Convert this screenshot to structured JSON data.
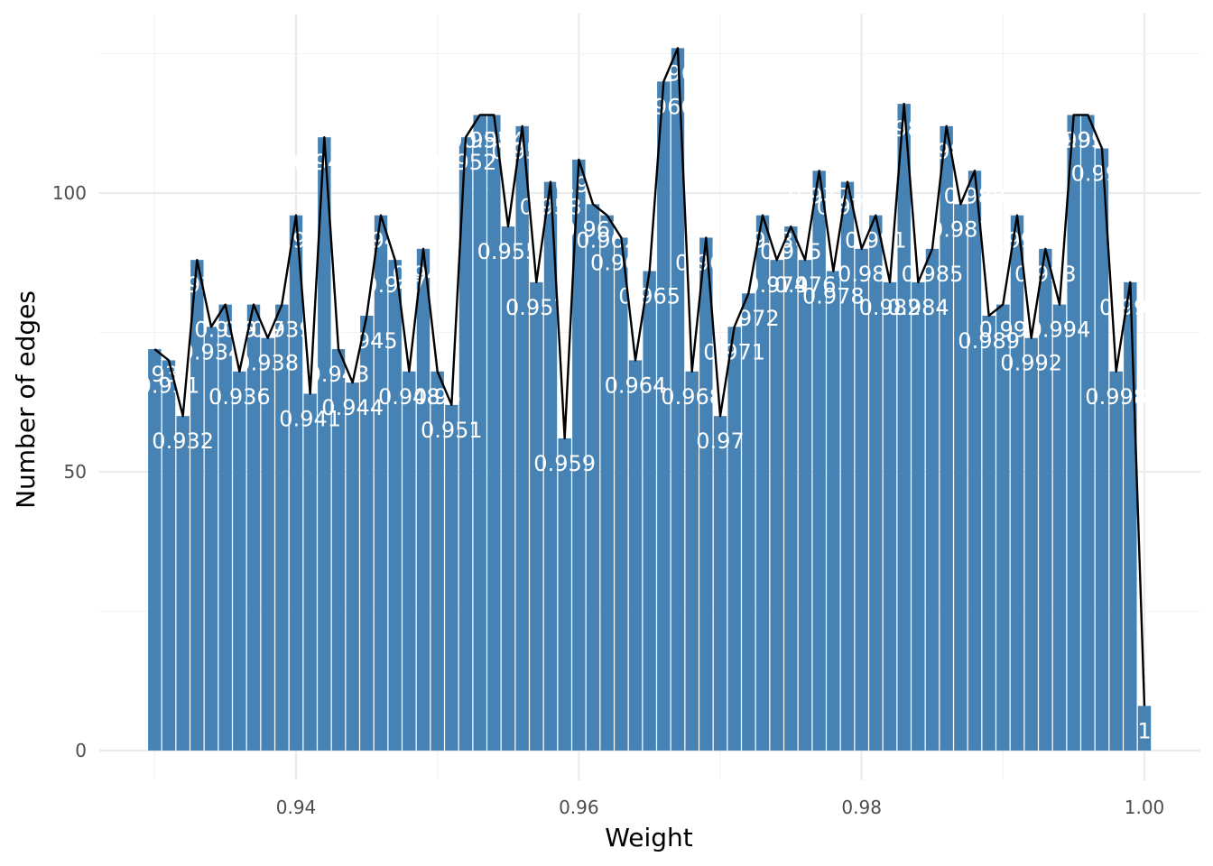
{
  "chart_data": {
    "type": "bar",
    "title": "",
    "xlabel": "Weight",
    "ylabel": "Number of edges",
    "xlim": [
      0.9265,
      1.0035
    ],
    "ylim": [
      -5,
      128
    ],
    "x_ticks": [
      {
        "value": 0.94,
        "label": "0.94"
      },
      {
        "value": 0.96,
        "label": "0.96"
      },
      {
        "value": 0.98,
        "label": "0.98"
      },
      {
        "value": 1.0,
        "label": "1.00"
      }
    ],
    "y_ticks": [
      {
        "value": 0,
        "label": "0"
      },
      {
        "value": 50,
        "label": "50"
      },
      {
        "value": 100,
        "label": "100"
      }
    ],
    "grid": true,
    "overlay": "line through bar tops",
    "bar_color": "#4682b4",
    "line_color": "#000000",
    "label_color": "#ffffff",
    "points": [
      {
        "x": 0.93,
        "y": 72,
        "label": "0.93"
      },
      {
        "x": 0.931,
        "y": 70,
        "label": "0.931"
      },
      {
        "x": 0.932,
        "y": 60,
        "label": "0.932"
      },
      {
        "x": 0.933,
        "y": 88,
        "label": "0.933"
      },
      {
        "x": 0.934,
        "y": 76,
        "label": "0.934"
      },
      {
        "x": 0.935,
        "y": 80,
        "label": "0.935"
      },
      {
        "x": 0.936,
        "y": 68,
        "label": "0.936"
      },
      {
        "x": 0.937,
        "y": 80,
        "label": "0.937"
      },
      {
        "x": 0.938,
        "y": 74,
        "label": "0.938"
      },
      {
        "x": 0.939,
        "y": 80,
        "label": "0.939"
      },
      {
        "x": 0.94,
        "y": 96,
        "label": "0.94"
      },
      {
        "x": 0.941,
        "y": 64,
        "label": "0.941"
      },
      {
        "x": 0.942,
        "y": 110,
        "label": "0.942"
      },
      {
        "x": 0.943,
        "y": 72,
        "label": "0.943"
      },
      {
        "x": 0.944,
        "y": 66,
        "label": "0.944"
      },
      {
        "x": 0.945,
        "y": 78,
        "label": "0.945"
      },
      {
        "x": 0.946,
        "y": 96,
        "label": "0.946"
      },
      {
        "x": 0.947,
        "y": 88,
        "label": "0.947"
      },
      {
        "x": 0.948,
        "y": 68,
        "label": "0.948"
      },
      {
        "x": 0.949,
        "y": 90,
        "label": "0.949"
      },
      {
        "x": 0.95,
        "y": 68,
        "label": "0.95"
      },
      {
        "x": 0.951,
        "y": 62,
        "label": "0.951"
      },
      {
        "x": 0.952,
        "y": 110,
        "label": "0.952"
      },
      {
        "x": 0.953,
        "y": 114,
        "label": "0.953"
      },
      {
        "x": 0.954,
        "y": 114,
        "label": "0.954"
      },
      {
        "x": 0.955,
        "y": 94,
        "label": "0.955"
      },
      {
        "x": 0.956,
        "y": 112,
        "label": "0.956"
      },
      {
        "x": 0.957,
        "y": 84,
        "label": "0.957"
      },
      {
        "x": 0.958,
        "y": 102,
        "label": "0.958"
      },
      {
        "x": 0.959,
        "y": 56,
        "label": "0.959"
      },
      {
        "x": 0.96,
        "y": 106,
        "label": "0.96"
      },
      {
        "x": 0.961,
        "y": 98,
        "label": "0.961"
      },
      {
        "x": 0.962,
        "y": 96,
        "label": "0.962"
      },
      {
        "x": 0.963,
        "y": 92,
        "label": "0.963"
      },
      {
        "x": 0.964,
        "y": 70,
        "label": "0.964"
      },
      {
        "x": 0.965,
        "y": 86,
        "label": "0.965"
      },
      {
        "x": 0.966,
        "y": 120,
        "label": "0.966"
      },
      {
        "x": 0.967,
        "y": 126,
        "label": "0.967"
      },
      {
        "x": 0.968,
        "y": 68,
        "label": "0.968"
      },
      {
        "x": 0.969,
        "y": 92,
        "label": "0.969"
      },
      {
        "x": 0.97,
        "y": 60,
        "label": "0.97"
      },
      {
        "x": 0.971,
        "y": 76,
        "label": "0.971"
      },
      {
        "x": 0.972,
        "y": 82,
        "label": "0.972"
      },
      {
        "x": 0.973,
        "y": 96,
        "label": "0.973"
      },
      {
        "x": 0.974,
        "y": 88,
        "label": "0.974"
      },
      {
        "x": 0.975,
        "y": 94,
        "label": "0.975"
      },
      {
        "x": 0.976,
        "y": 88,
        "label": "0.976"
      },
      {
        "x": 0.977,
        "y": 104,
        "label": "0.977"
      },
      {
        "x": 0.978,
        "y": 86,
        "label": "0.978"
      },
      {
        "x": 0.979,
        "y": 102,
        "label": "0.979"
      },
      {
        "x": 0.98,
        "y": 90,
        "label": "0.98"
      },
      {
        "x": 0.981,
        "y": 96,
        "label": "0.981"
      },
      {
        "x": 0.982,
        "y": 84,
        "label": "0.982"
      },
      {
        "x": 0.983,
        "y": 116,
        "label": "0.983"
      },
      {
        "x": 0.984,
        "y": 84,
        "label": "0.984"
      },
      {
        "x": 0.985,
        "y": 90,
        "label": "0.985"
      },
      {
        "x": 0.986,
        "y": 112,
        "label": "0.986"
      },
      {
        "x": 0.987,
        "y": 98,
        "label": "0.987"
      },
      {
        "x": 0.988,
        "y": 104,
        "label": "0.988"
      },
      {
        "x": 0.989,
        "y": 78,
        "label": "0.989"
      },
      {
        "x": 0.99,
        "y": 80,
        "label": "0.99"
      },
      {
        "x": 0.991,
        "y": 96,
        "label": "0.991"
      },
      {
        "x": 0.992,
        "y": 74,
        "label": "0.992"
      },
      {
        "x": 0.993,
        "y": 90,
        "label": "0.993"
      },
      {
        "x": 0.994,
        "y": 80,
        "label": "0.994"
      },
      {
        "x": 0.995,
        "y": 114,
        "label": "0.995"
      },
      {
        "x": 0.996,
        "y": 114,
        "label": "0.996"
      },
      {
        "x": 0.997,
        "y": 108,
        "label": "0.997"
      },
      {
        "x": 0.998,
        "y": 68,
        "label": "0.998"
      },
      {
        "x": 0.999,
        "y": 84,
        "label": "0.999"
      },
      {
        "x": 1.0,
        "y": 8,
        "label": "1"
      }
    ]
  }
}
